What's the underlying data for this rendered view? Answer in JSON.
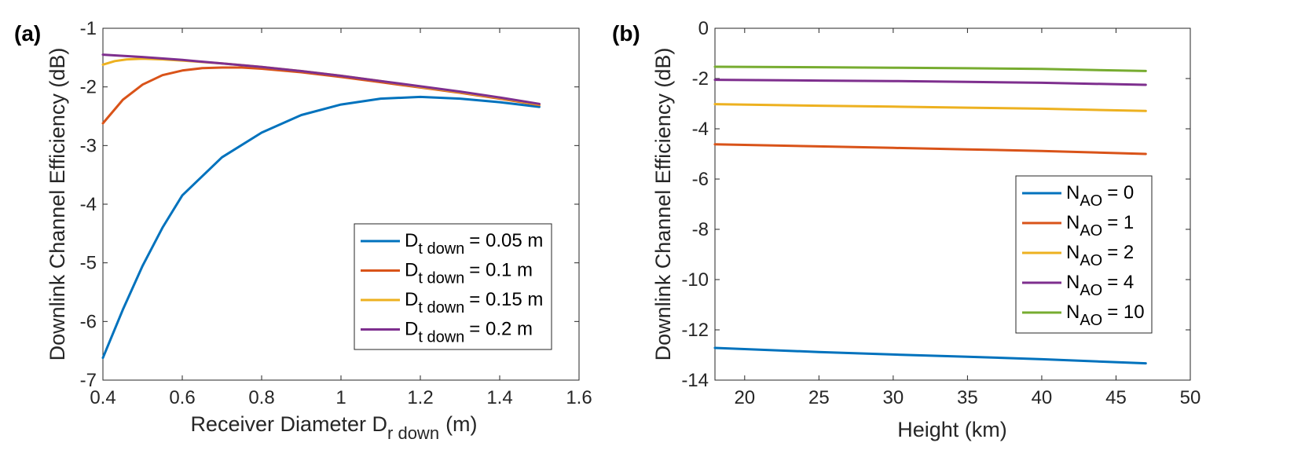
{
  "chart_data": [
    {
      "type": "line",
      "panel_label": "(a)",
      "xlabel": "Receiver Diameter D",
      "xlabel_sub": "r down",
      "xlabel_unit": "(m)",
      "ylabel": "Downlink Channel Efficiency (dB)",
      "xlim": [
        0.4,
        1.6
      ],
      "ylim": [
        -7,
        -1
      ],
      "xticks": [
        0.4,
        0.6,
        0.8,
        1,
        1.2,
        1.4,
        1.6
      ],
      "xtick_labels": [
        "0.4",
        "0.6",
        "0.8",
        "1",
        "1.2",
        "1.4",
        "1.6"
      ],
      "yticks": [
        -7,
        -6,
        -5,
        -4,
        -3,
        -2,
        -1
      ],
      "ytick_labels": [
        "-7",
        "-6",
        "-5",
        "-4",
        "-3",
        "-2",
        "-1"
      ],
      "legend_position": "lower-right",
      "series": [
        {
          "prefix": "D",
          "sub": "t down",
          "suffix": "= 0.05 m",
          "color": "#0072BD",
          "x": [
            0.4,
            0.45,
            0.5,
            0.55,
            0.6,
            0.7,
            0.8,
            0.9,
            1.0,
            1.1,
            1.2,
            1.3,
            1.4,
            1.5
          ],
          "y": [
            -6.62,
            -5.8,
            -5.05,
            -4.4,
            -3.85,
            -3.2,
            -2.78,
            -2.48,
            -2.3,
            -2.2,
            -2.17,
            -2.2,
            -2.26,
            -2.34
          ]
        },
        {
          "prefix": "D",
          "sub": "t down",
          "suffix": "= 0.1 m",
          "color": "#D95319",
          "x": [
            0.4,
            0.45,
            0.5,
            0.55,
            0.6,
            0.65,
            0.7,
            0.75,
            0.8,
            0.9,
            1.0,
            1.1,
            1.2,
            1.3,
            1.4,
            1.5
          ],
          "y": [
            -2.62,
            -2.22,
            -1.96,
            -1.8,
            -1.72,
            -1.68,
            -1.67,
            -1.67,
            -1.69,
            -1.75,
            -1.83,
            -1.92,
            -2.01,
            -2.1,
            -2.2,
            -2.31
          ]
        },
        {
          "prefix": "D",
          "sub": "t down",
          "suffix": "= 0.15 m",
          "color": "#EDB120",
          "x": [
            0.4,
            0.43,
            0.46,
            0.5,
            0.55,
            0.6,
            0.7,
            0.8,
            0.9,
            1.0,
            1.1,
            1.2,
            1.3,
            1.4,
            1.5
          ],
          "y": [
            -1.62,
            -1.56,
            -1.53,
            -1.52,
            -1.53,
            -1.55,
            -1.6,
            -1.66,
            -1.73,
            -1.81,
            -1.9,
            -2.0,
            -2.09,
            -2.19,
            -2.3
          ]
        },
        {
          "prefix": "D",
          "sub": "t down",
          "suffix": "= 0.2 m",
          "color": "#7E2F8E",
          "x": [
            0.4,
            0.5,
            0.6,
            0.7,
            0.8,
            0.9,
            1.0,
            1.1,
            1.2,
            1.3,
            1.4,
            1.5
          ],
          "y": [
            -1.45,
            -1.49,
            -1.54,
            -1.6,
            -1.66,
            -1.73,
            -1.81,
            -1.9,
            -1.99,
            -2.08,
            -2.18,
            -2.29
          ]
        }
      ]
    },
    {
      "type": "line",
      "panel_label": "(b)",
      "xlabel": "Height (km)",
      "ylabel": "Downlink Channel Efficiency (dB)",
      "xlim": [
        18,
        50
      ],
      "ylim": [
        -14,
        0
      ],
      "xticks": [
        20,
        25,
        30,
        35,
        40,
        45,
        50
      ],
      "xtick_labels": [
        "20",
        "25",
        "30",
        "35",
        "40",
        "45",
        "50"
      ],
      "yticks": [
        -14,
        -12,
        -10,
        -8,
        -6,
        -4,
        -2,
        0
      ],
      "ytick_labels": [
        "-14",
        "-12",
        "-10",
        "-8",
        "-6",
        "-4",
        "-2",
        "0"
      ],
      "legend_position": "right",
      "series": [
        {
          "prefix": "N",
          "sub": "AO",
          "suffix": "= 0",
          "color": "#0072BD",
          "x": [
            18,
            25,
            30,
            35,
            40,
            47
          ],
          "y": [
            -12.72,
            -12.88,
            -12.98,
            -13.07,
            -13.17,
            -13.33
          ]
        },
        {
          "prefix": "N",
          "sub": "AO",
          "suffix": "= 1",
          "color": "#D95319",
          "x": [
            18,
            25,
            30,
            35,
            40,
            47
          ],
          "y": [
            -4.62,
            -4.7,
            -4.76,
            -4.82,
            -4.88,
            -5.0
          ]
        },
        {
          "prefix": "N",
          "sub": "AO",
          "suffix": "= 2",
          "color": "#EDB120",
          "x": [
            18,
            25,
            30,
            35,
            40,
            47
          ],
          "y": [
            -3.02,
            -3.08,
            -3.12,
            -3.16,
            -3.2,
            -3.29
          ]
        },
        {
          "prefix": "N",
          "sub": "AO",
          "suffix": "= 4",
          "color": "#7E2F8E",
          "x": [
            18,
            25,
            30,
            35,
            40,
            47
          ],
          "y": [
            -2.05,
            -2.08,
            -2.1,
            -2.13,
            -2.17,
            -2.25
          ]
        },
        {
          "prefix": "N",
          "sub": "AO",
          "suffix": "= 10",
          "color": "#77AC30",
          "x": [
            18,
            25,
            30,
            35,
            40,
            47
          ],
          "y": [
            -1.53,
            -1.55,
            -1.57,
            -1.59,
            -1.62,
            -1.7
          ]
        }
      ]
    }
  ]
}
